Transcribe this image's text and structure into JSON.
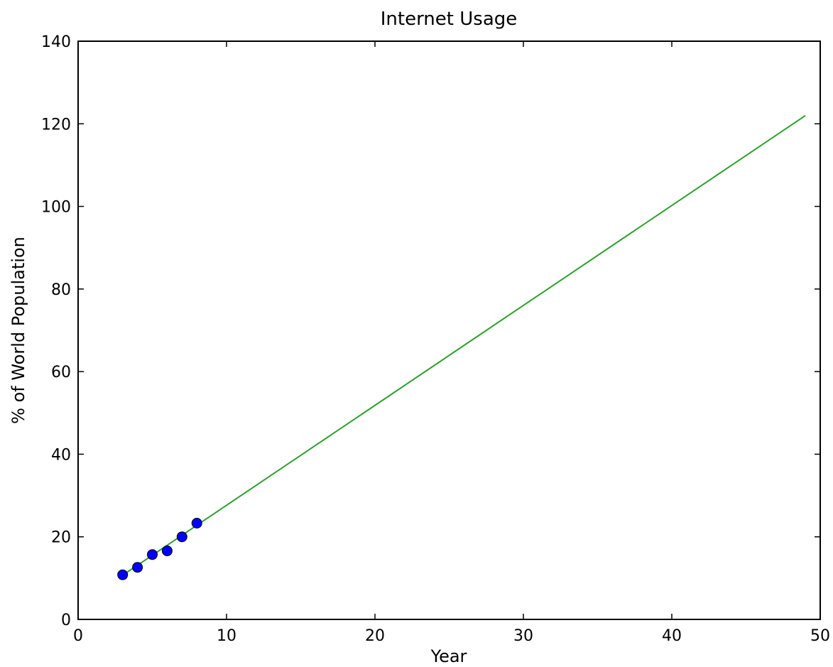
{
  "chart_data": {
    "type": "line",
    "title": "Internet Usage",
    "xlabel": "Year",
    "ylabel": "%  of World Population",
    "xlim": [
      0,
      50
    ],
    "ylim": [
      0,
      140
    ],
    "x_ticks": [
      0,
      10,
      20,
      30,
      40,
      50
    ],
    "y_ticks": [
      0,
      20,
      40,
      60,
      80,
      100,
      120,
      140
    ],
    "grid": false,
    "legend": "none",
    "series": [
      {
        "kind": "scatter",
        "color": "#0000ff",
        "points": [
          {
            "x": 3,
            "y": 10.8
          },
          {
            "x": 4,
            "y": 12.6
          },
          {
            "x": 5,
            "y": 15.7
          },
          {
            "x": 6,
            "y": 16.6
          },
          {
            "x": 7,
            "y": 20.0
          },
          {
            "x": 8,
            "y": 23.3
          }
        ]
      },
      {
        "kind": "line",
        "color": "#2ca02c",
        "points": [
          {
            "x": 3,
            "y": 10.7
          },
          {
            "x": 49,
            "y": 122.0
          }
        ]
      }
    ]
  }
}
